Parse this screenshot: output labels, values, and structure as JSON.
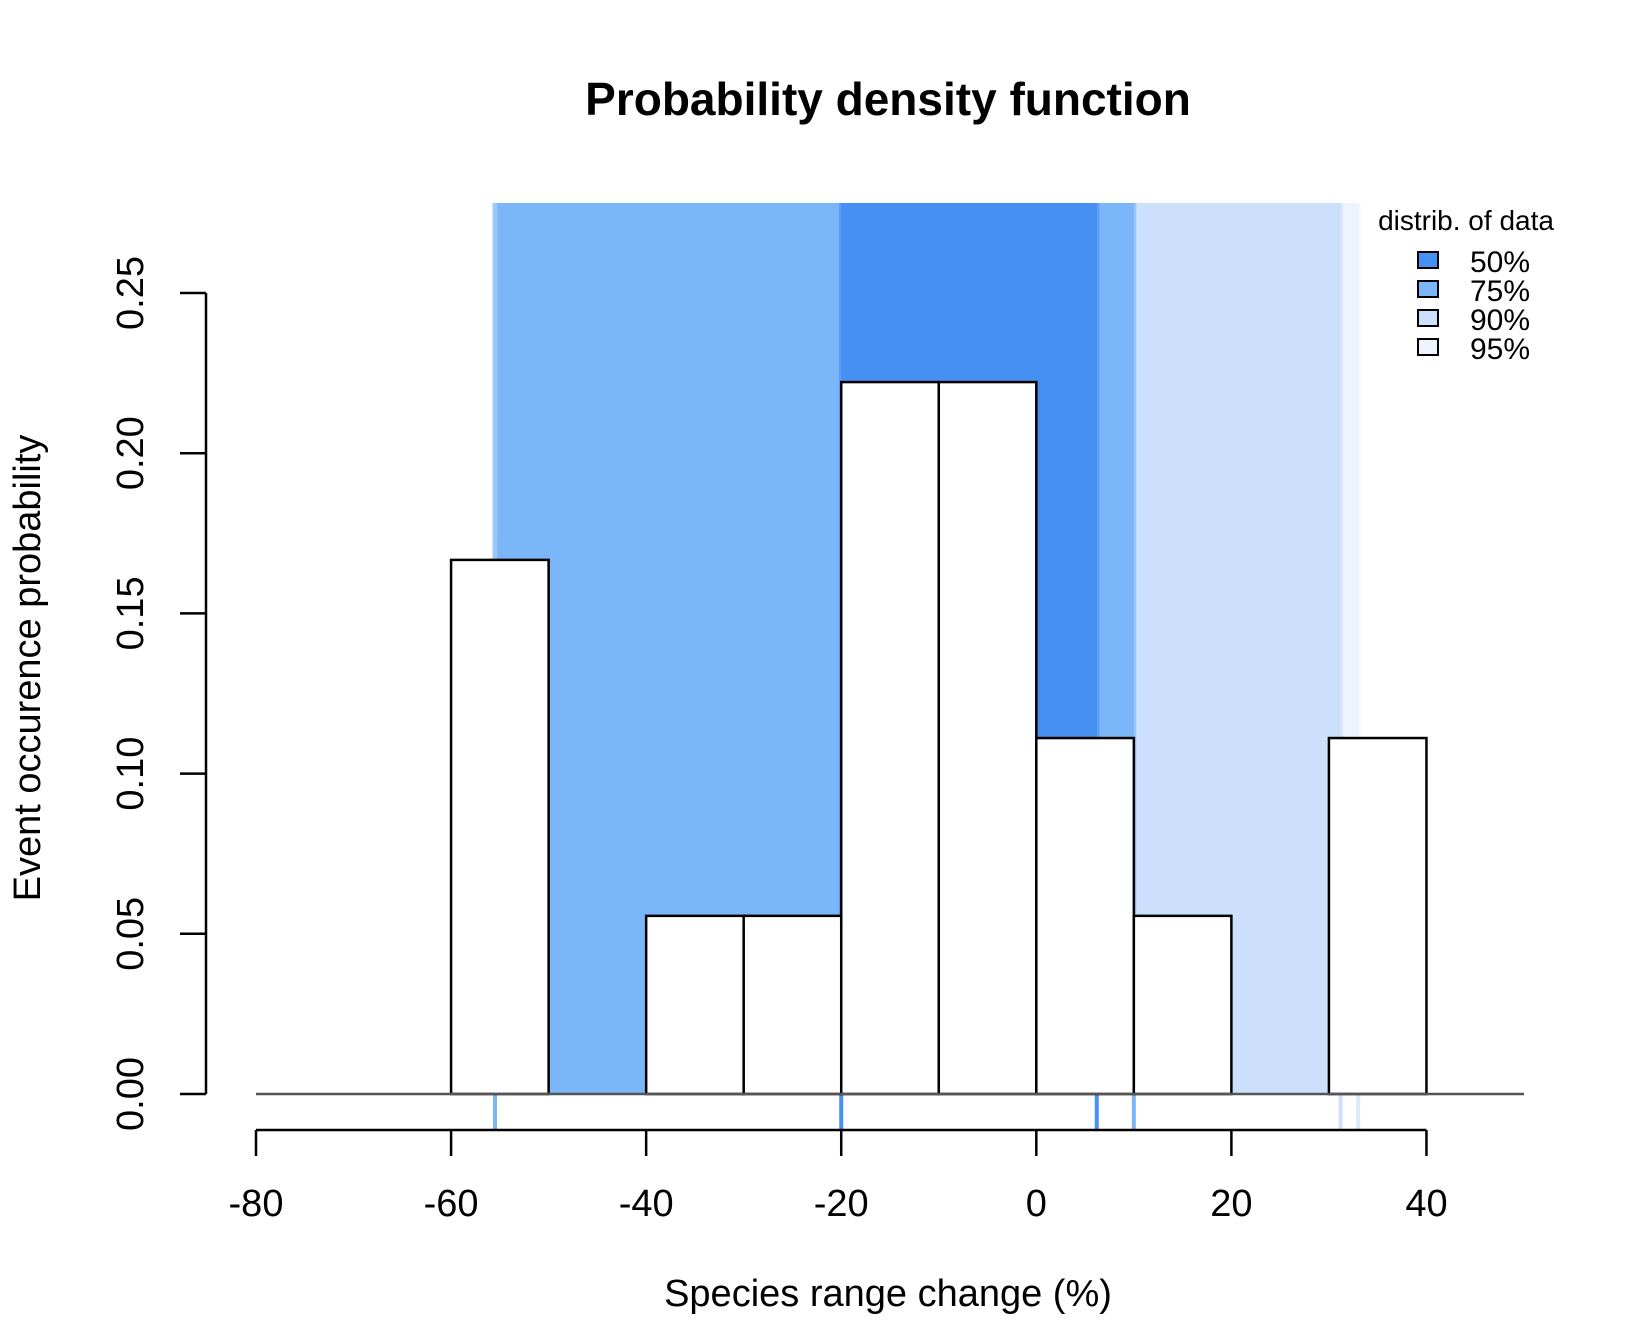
{
  "chart_data": {
    "type": "bar",
    "title": "Probability density function",
    "xlabel": "Species range change (%)",
    "ylabel": "Event occurence probability",
    "xlim": [
      -80,
      50
    ],
    "ylim": [
      0,
      0.25
    ],
    "x_ticks": [
      "-80",
      "-60",
      "-40",
      "-20",
      "0",
      "20",
      "40"
    ],
    "x_tick_values": [
      -80,
      -60,
      -40,
      -20,
      0,
      20,
      40
    ],
    "y_ticks": [
      "0.00",
      "0.05",
      "0.10",
      "0.15",
      "0.20",
      "0.25"
    ],
    "y_tick_values": [
      0,
      0.05,
      0.1,
      0.15,
      0.2,
      0.25
    ],
    "bins": [
      {
        "start": -60,
        "end": -50,
        "value": 0.1667
      },
      {
        "start": -50,
        "end": -40,
        "value": 0
      },
      {
        "start": -40,
        "end": -30,
        "value": 0.0556
      },
      {
        "start": -30,
        "end": -20,
        "value": 0.0556
      },
      {
        "start": -20,
        "end": -10,
        "value": 0.2222
      },
      {
        "start": -10,
        "end": 0,
        "value": 0.2222
      },
      {
        "start": 0,
        "end": 10,
        "value": 0.1111
      },
      {
        "start": 10,
        "end": 20,
        "value": 0.0556
      },
      {
        "start": 20,
        "end": 30,
        "value": 0
      },
      {
        "start": 30,
        "end": 40,
        "value": 0.1111
      }
    ],
    "quantile_bands": [
      {
        "label": "95%",
        "lower": -55.5,
        "upper": 33,
        "color": "#eef4fd"
      },
      {
        "label": "90%",
        "lower": -55.5,
        "upper": 31.2,
        "color": "#cce0fb"
      },
      {
        "label": "75%",
        "lower": -55.5,
        "upper": 10,
        "color": "#7ab6f8"
      },
      {
        "label": "50%",
        "lower": -20,
        "upper": 6.2,
        "color": "#4690f4"
      }
    ],
    "legend": {
      "title": "distrib. of data",
      "position": "top-right",
      "items": [
        {
          "label": "50%",
          "color": "#4690f4"
        },
        {
          "label": "75%",
          "color": "#7ab6f8"
        },
        {
          "label": "90%",
          "color": "#cce0fb"
        },
        {
          "label": "95%",
          "color": "#eef4fd"
        }
      ]
    }
  }
}
